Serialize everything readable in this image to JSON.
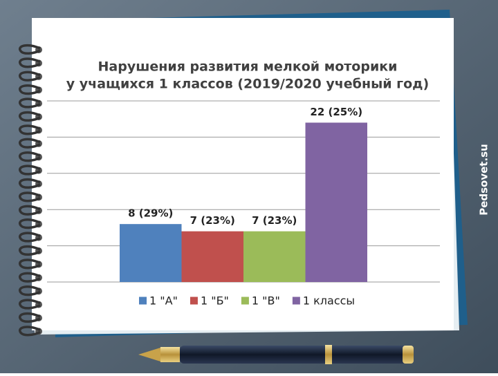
{
  "chart_data": {
    "type": "bar",
    "title": [
      "Нарушения развития мелкой моторики",
      "у учащихся 1 классов (2019/2020 учебный год)"
    ],
    "categories": [
      null
    ],
    "series": [
      {
        "name": "1 \"А\"",
        "color": "#4f81bd",
        "values": [
          8
        ],
        "value_labels": [
          "8 (29%)"
        ]
      },
      {
        "name": "1 \"Б\"",
        "color": "#c0504d",
        "values": [
          7
        ],
        "value_labels": [
          "7 (23%)"
        ]
      },
      {
        "name": "1 \"В\"",
        "color": "#9bbb59",
        "values": [
          7
        ],
        "value_labels": [
          "7 (23%)"
        ]
      },
      {
        "name": "1 классы",
        "color": "#8064a2",
        "values": [
          22
        ],
        "value_labels": [
          "22 (25%)"
        ]
      }
    ],
    "ylim": [
      0,
      25
    ],
    "yticks": [
      0,
      5,
      10,
      15,
      20,
      25
    ],
    "grid": true,
    "legend": "bottom"
  },
  "watermark": "Pedsovet.su"
}
